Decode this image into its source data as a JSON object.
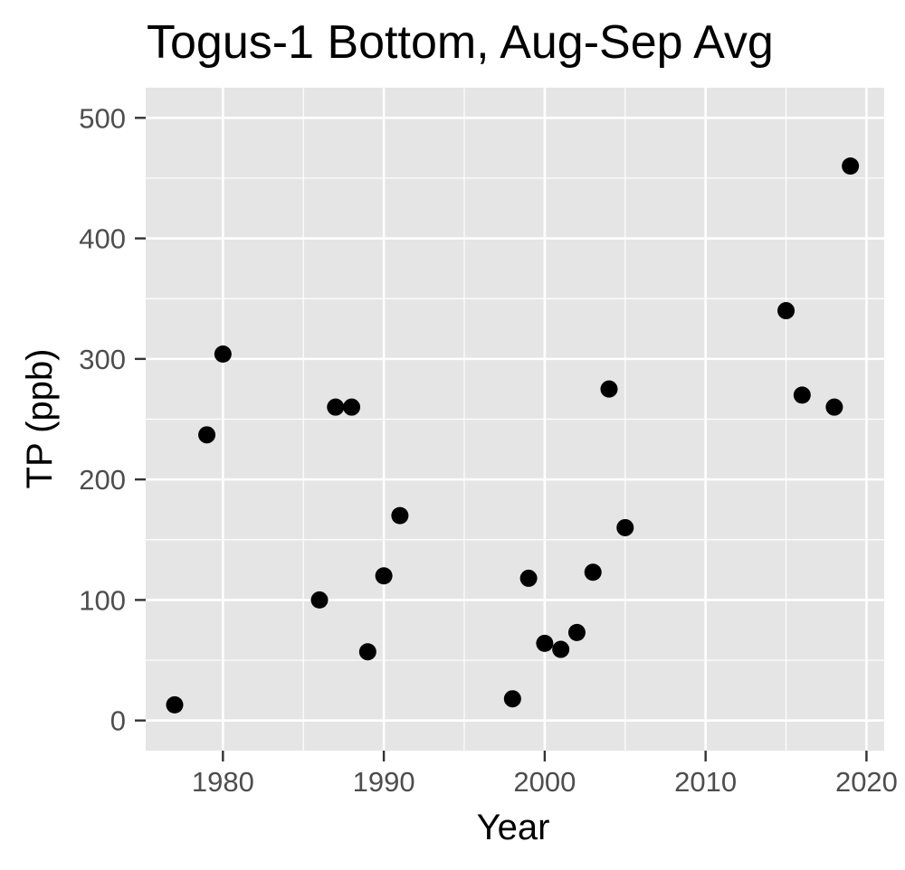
{
  "chart_data": {
    "type": "scatter",
    "title": "Togus-1 Bottom, Aug-Sep Avg",
    "xlabel": "Year",
    "ylabel": "TP (ppb)",
    "xlim": [
      1975.2,
      2021.1
    ],
    "ylim": [
      -25,
      525
    ],
    "x_ticks": [
      1980,
      1990,
      2000,
      2010,
      2020
    ],
    "y_ticks": [
      0,
      100,
      200,
      300,
      400,
      500
    ],
    "grid": true,
    "legend": "none",
    "colors": {
      "panel": "#e5e5e5",
      "grid": "#ffffff",
      "point": "#000000",
      "tick_text": "#4d4d4d",
      "tick_mark": "#333333"
    },
    "points": [
      {
        "x": 1977,
        "y": 13
      },
      {
        "x": 1979,
        "y": 237
      },
      {
        "x": 1980,
        "y": 304
      },
      {
        "x": 1986,
        "y": 100
      },
      {
        "x": 1987,
        "y": 260
      },
      {
        "x": 1988,
        "y": 260
      },
      {
        "x": 1989,
        "y": 57
      },
      {
        "x": 1990,
        "y": 120
      },
      {
        "x": 1991,
        "y": 170
      },
      {
        "x": 1998,
        "y": 18
      },
      {
        "x": 1999,
        "y": 118
      },
      {
        "x": 2000,
        "y": 64
      },
      {
        "x": 2001,
        "y": 59
      },
      {
        "x": 2002,
        "y": 73
      },
      {
        "x": 2003,
        "y": 123
      },
      {
        "x": 2004,
        "y": 275
      },
      {
        "x": 2005,
        "y": 160
      },
      {
        "x": 2015,
        "y": 340
      },
      {
        "x": 2016,
        "y": 270
      },
      {
        "x": 2018,
        "y": 260
      },
      {
        "x": 2019,
        "y": 460
      }
    ]
  }
}
